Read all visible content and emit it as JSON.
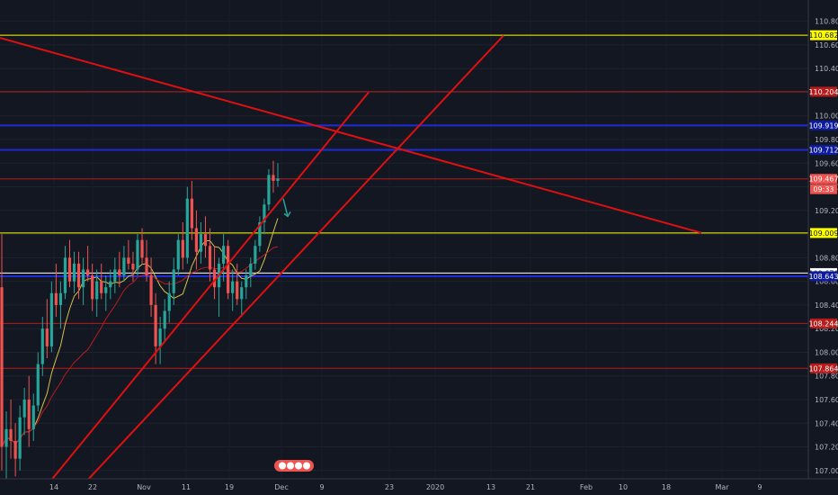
{
  "chart_data": {
    "type": "candlestick",
    "y_ticks": [
      "110.800",
      "110.600",
      "110.400",
      "110.200",
      "110.000",
      "109.800",
      "109.600",
      "109.400",
      "109.200",
      "109.000",
      "108.800",
      "108.600",
      "108.400",
      "108.200",
      "108.000",
      "107.800",
      "107.600",
      "107.400",
      "107.200",
      "107.000"
    ],
    "y_tick_values": [
      110.8,
      110.6,
      110.4,
      110.2,
      110.0,
      109.8,
      109.6,
      109.4,
      109.2,
      109.0,
      108.8,
      108.6,
      108.4,
      108.2,
      108.0,
      107.8,
      107.6,
      107.4,
      107.2,
      107.0
    ],
    "ylim": [
      106.93,
      110.98
    ],
    "x_ticks": [
      "14",
      "22",
      "Nov",
      "11",
      "19",
      "Dec",
      "9",
      "23",
      "2020",
      "13",
      "21",
      "Feb",
      "10",
      "18",
      "Mar",
      "9"
    ],
    "price_labels": [
      {
        "text": "110.682",
        "value": 110.682,
        "color": "#ffff00",
        "text_color": "#131722"
      },
      {
        "text": "110.204",
        "value": 110.204,
        "color": "#b71c1c",
        "text_color": "#ffffff"
      },
      {
        "text": "109.919",
        "value": 109.919,
        "color": "#0d1b9e",
        "text_color": "#ffffff"
      },
      {
        "text": "109.712",
        "value": 109.712,
        "color": "#0d1b9e",
        "text_color": "#ffffff"
      },
      {
        "text": "109.467",
        "value": 109.467,
        "color": "#ef5350",
        "text_color": "#ffffff"
      },
      {
        "text": "09:33",
        "value": 109.38,
        "color": "#ef5350",
        "text_color": "#ffffff"
      },
      {
        "text": "109.009",
        "value": 109.009,
        "color": "#ffff00",
        "text_color": "#131722"
      },
      {
        "text": "108.670",
        "value": 108.67,
        "color": "#ffffff",
        "text_color": "#131722"
      },
      {
        "text": "108.643",
        "value": 108.643,
        "color": "#0d1b9e",
        "text_color": "#ffffff"
      },
      {
        "text": "108.244",
        "value": 108.244,
        "color": "#b71c1c",
        "text_color": "#ffffff"
      },
      {
        "text": "107.864",
        "value": 107.864,
        "color": "#b71c1c",
        "text_color": "#ffffff"
      }
    ],
    "horizontal_lines": [
      {
        "value": 110.682,
        "color": "#ffff00",
        "width": 1,
        "start": "left"
      },
      {
        "value": 110.204,
        "color": "#b71c1c",
        "width": 1,
        "start": "left"
      },
      {
        "value": 109.919,
        "color": "#1e2bd6",
        "width": 2,
        "start": "left"
      },
      {
        "value": 109.712,
        "color": "#1e2bd6",
        "width": 2,
        "start": "left"
      },
      {
        "value": 109.467,
        "color": "#b71c1c",
        "width": 1,
        "start": "left"
      },
      {
        "value": 109.009,
        "color": "#ffff00",
        "width": 1,
        "start": "left"
      },
      {
        "value": 108.67,
        "color": "#ffffff",
        "width": 1,
        "start": "left"
      },
      {
        "value": 108.643,
        "color": "#1e2bd6",
        "width": 2,
        "start": "left"
      },
      {
        "value": 108.244,
        "color": "#b71c1c",
        "width": 1,
        "start": "left"
      },
      {
        "value": 107.864,
        "color": "#b71c1c",
        "width": 1,
        "start": "left"
      }
    ],
    "trend_lines": [
      {
        "name": "descending-trendline",
        "from": [
          0,
          110.66
        ],
        "to": [
          780,
          109.01
        ],
        "color": "#e01010",
        "width": 2
      },
      {
        "name": "lower-channel-line",
        "from": [
          55,
          106.9
        ],
        "to": [
          410,
          110.2
        ],
        "color": "#e01010",
        "width": 2
      },
      {
        "name": "upper-channel-line",
        "from": [
          95,
          106.9
        ],
        "to": [
          560,
          110.68
        ],
        "color": "#e01010",
        "width": 2
      }
    ],
    "forecast_arrow": {
      "from": [
        315,
        109.3
      ],
      "to": [
        320,
        109.15
      ],
      "color": "#26a69a"
    },
    "candles": [
      [
        108.55,
        109.0,
        107.0,
        107.2
      ],
      [
        107.2,
        107.5,
        106.9,
        107.35
      ],
      [
        107.35,
        107.6,
        107.1,
        107.25
      ],
      [
        107.25,
        107.4,
        106.95,
        107.1
      ],
      [
        107.1,
        107.55,
        107.0,
        107.45
      ],
      [
        107.45,
        107.7,
        107.3,
        107.6
      ],
      [
        107.6,
        107.8,
        107.2,
        107.35
      ],
      [
        107.35,
        107.65,
        107.25,
        107.55
      ],
      [
        107.55,
        108.0,
        107.5,
        107.9
      ],
      [
        107.9,
        108.3,
        107.8,
        108.2
      ],
      [
        108.2,
        108.45,
        107.95,
        108.05
      ],
      [
        108.05,
        108.6,
        108.0,
        108.5
      ],
      [
        108.5,
        108.75,
        108.3,
        108.4
      ],
      [
        108.4,
        108.6,
        108.2,
        108.5
      ],
      [
        108.5,
        108.9,
        108.45,
        108.8
      ],
      [
        108.8,
        108.95,
        108.55,
        108.6
      ],
      [
        108.6,
        108.85,
        108.5,
        108.75
      ],
      [
        108.75,
        108.85,
        108.45,
        108.55
      ],
      [
        108.55,
        108.8,
        108.4,
        108.7
      ],
      [
        108.7,
        108.9,
        108.6,
        108.65
      ],
      [
        108.65,
        108.75,
        108.35,
        108.45
      ],
      [
        108.45,
        108.7,
        108.3,
        108.6
      ],
      [
        108.6,
        108.75,
        108.45,
        108.5
      ],
      [
        108.5,
        108.65,
        108.35,
        108.55
      ],
      [
        108.55,
        108.7,
        108.45,
        108.6
      ],
      [
        108.6,
        108.8,
        108.5,
        108.7
      ],
      [
        108.7,
        108.85,
        108.55,
        108.65
      ],
      [
        108.65,
        108.9,
        108.6,
        108.8
      ],
      [
        108.8,
        108.95,
        108.7,
        108.75
      ],
      [
        108.75,
        108.85,
        108.6,
        108.7
      ],
      [
        108.7,
        109.0,
        108.65,
        108.95
      ],
      [
        108.95,
        109.05,
        108.75,
        108.8
      ],
      [
        108.8,
        108.95,
        108.6,
        108.65
      ],
      [
        108.65,
        108.8,
        108.3,
        108.4
      ],
      [
        108.4,
        108.5,
        107.9,
        108.05
      ],
      [
        108.05,
        108.3,
        107.9,
        108.2
      ],
      [
        108.2,
        108.45,
        108.1,
        108.35
      ],
      [
        108.35,
        108.6,
        108.25,
        108.5
      ],
      [
        108.5,
        108.8,
        108.4,
        108.7
      ],
      [
        108.7,
        109.0,
        108.65,
        108.95
      ],
      [
        108.95,
        109.1,
        108.7,
        108.8
      ],
      [
        108.8,
        109.4,
        108.75,
        109.3
      ],
      [
        109.3,
        109.45,
        108.95,
        109.05
      ],
      [
        109.05,
        109.2,
        108.7,
        108.85
      ],
      [
        108.85,
        109.1,
        108.75,
        109.0
      ],
      [
        109.0,
        109.15,
        108.8,
        108.9
      ],
      [
        108.9,
        109.05,
        108.6,
        108.7
      ],
      [
        108.7,
        108.9,
        108.45,
        108.55
      ],
      [
        108.55,
        108.8,
        108.3,
        108.75
      ],
      [
        108.75,
        109.0,
        108.6,
        108.9
      ],
      [
        108.9,
        108.95,
        108.45,
        108.5
      ],
      [
        108.5,
        108.7,
        108.35,
        108.6
      ],
      [
        108.6,
        108.75,
        108.4,
        108.45
      ],
      [
        108.45,
        108.6,
        108.3,
        108.55
      ],
      [
        108.55,
        108.7,
        108.45,
        108.65
      ],
      [
        108.65,
        108.8,
        108.55,
        108.75
      ],
      [
        108.75,
        108.95,
        108.7,
        108.9
      ],
      [
        108.9,
        109.15,
        108.85,
        109.1
      ],
      [
        109.1,
        109.3,
        109.0,
        109.25
      ],
      [
        109.25,
        109.55,
        109.2,
        109.5
      ],
      [
        109.5,
        109.62,
        109.35,
        109.45
      ],
      [
        109.45,
        109.6,
        109.4,
        109.47
      ]
    ]
  },
  "watermark": {
    "icons": [
      "tv-logo-icon"
    ]
  }
}
